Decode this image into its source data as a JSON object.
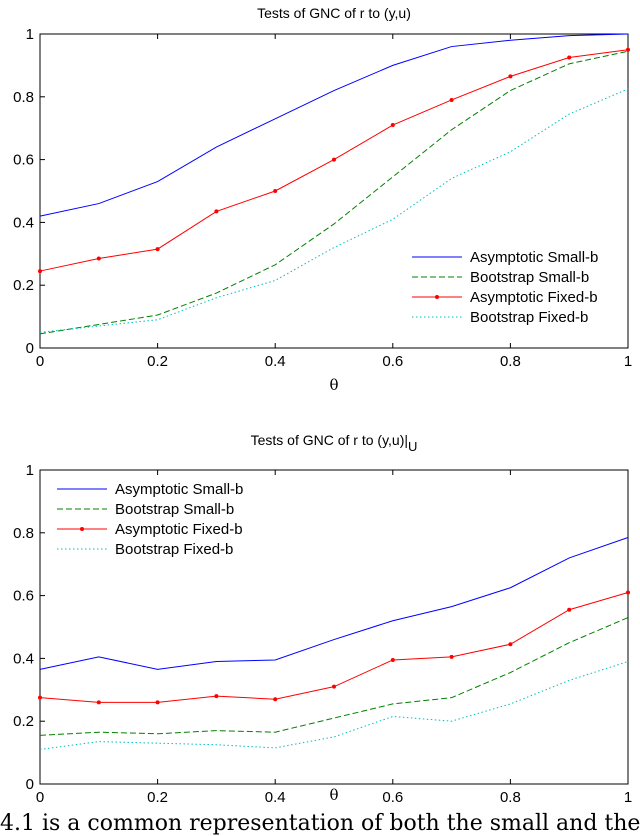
{
  "chart_data": [
    {
      "type": "line",
      "title": "Tests of GNC of r to (y,u)",
      "title_subscript": "",
      "xlabel": "θ",
      "ylabel": "",
      "xlim": [
        0,
        1
      ],
      "ylim": [
        0,
        1
      ],
      "x_ticks": [
        "0",
        "0.2",
        "0.4",
        "0.6",
        "0.8",
        "1"
      ],
      "y_ticks": [
        "0",
        "0.2",
        "0.4",
        "0.6",
        "0.8",
        "1"
      ],
      "x": [
        0,
        0.1,
        0.2,
        0.3,
        0.4,
        0.5,
        0.6,
        0.7,
        0.8,
        0.9,
        1.0
      ],
      "legend_position": "lower-right",
      "grid": false,
      "series": [
        {
          "name": "Asymptotic Small-b",
          "color": "#0000ff",
          "style": "solid",
          "marker": "none",
          "values": [
            0.42,
            0.46,
            0.53,
            0.64,
            0.73,
            0.82,
            0.9,
            0.96,
            0.98,
            0.995,
            1.0
          ]
        },
        {
          "name": "Bootstrap Small-b",
          "color": "#008000",
          "style": "dashed",
          "marker": "none",
          "values": [
            0.045,
            0.075,
            0.105,
            0.175,
            0.265,
            0.395,
            0.545,
            0.695,
            0.82,
            0.905,
            0.945
          ]
        },
        {
          "name": "Asymptotic Fixed-b",
          "color": "#ff0000",
          "style": "solid",
          "marker": "dot",
          "values": [
            0.245,
            0.285,
            0.315,
            0.435,
            0.5,
            0.6,
            0.71,
            0.79,
            0.865,
            0.925,
            0.95
          ]
        },
        {
          "name": "Bootstrap Fixed-b",
          "color": "#00bfbf",
          "style": "dotted",
          "marker": "none",
          "values": [
            0.05,
            0.07,
            0.09,
            0.16,
            0.215,
            0.32,
            0.41,
            0.54,
            0.625,
            0.745,
            0.825
          ]
        }
      ]
    },
    {
      "type": "line",
      "title": "Tests of GNC of r to (y,u)|",
      "title_subscript": "U",
      "xlabel": "θ",
      "ylabel": "",
      "xlim": [
        0,
        1
      ],
      "ylim": [
        0,
        1
      ],
      "x_ticks": [
        "0",
        "0.2",
        "0.4",
        "0.6",
        "0.8",
        "1"
      ],
      "y_ticks": [
        "0",
        "0.2",
        "0.4",
        "0.6",
        "0.8",
        "1"
      ],
      "x": [
        0,
        0.1,
        0.2,
        0.3,
        0.4,
        0.5,
        0.6,
        0.7,
        0.8,
        0.9,
        1.0
      ],
      "legend_position": "upper-left",
      "grid": false,
      "series": [
        {
          "name": "Asymptotic Small-b",
          "color": "#0000ff",
          "style": "solid",
          "marker": "none",
          "values": [
            0.365,
            0.405,
            0.365,
            0.39,
            0.395,
            0.46,
            0.52,
            0.565,
            0.625,
            0.72,
            0.785
          ]
        },
        {
          "name": "Bootstrap Small-b",
          "color": "#008000",
          "style": "dashed",
          "marker": "none",
          "values": [
            0.155,
            0.165,
            0.16,
            0.17,
            0.165,
            0.21,
            0.255,
            0.275,
            0.355,
            0.45,
            0.53
          ]
        },
        {
          "name": "Asymptotic Fixed-b",
          "color": "#ff0000",
          "style": "solid",
          "marker": "dot",
          "values": [
            0.275,
            0.26,
            0.26,
            0.28,
            0.27,
            0.31,
            0.395,
            0.405,
            0.445,
            0.555,
            0.61
          ]
        },
        {
          "name": "Bootstrap Fixed-b",
          "color": "#00bfbf",
          "style": "dotted",
          "marker": "none",
          "values": [
            0.11,
            0.135,
            0.13,
            0.125,
            0.115,
            0.15,
            0.215,
            0.2,
            0.255,
            0.33,
            0.39
          ]
        }
      ]
    }
  ],
  "caption": "4.1 is a common representation of both the small and the"
}
